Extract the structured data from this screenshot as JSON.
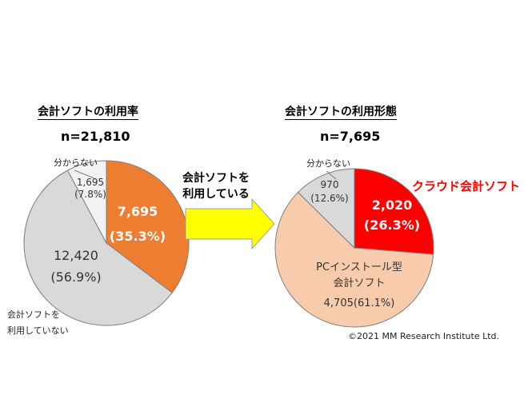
{
  "chart_data": [
    {
      "type": "pie",
      "title": "会計ソフトの利用率",
      "subtitle": "n=21,810",
      "slices": [
        {
          "label": "",
          "value_text": "7,695",
          "percent_text": "(35.3%)",
          "value": 7695,
          "percent": 35.3,
          "color": "#ed7d31"
        },
        {
          "label": "会計ソフトを利用していない",
          "value_text": "12,420",
          "percent_text": "(56.9%)",
          "value": 12420,
          "percent": 56.9,
          "color": "#d9d9d9"
        },
        {
          "label": "分からない",
          "value_text": "1,695",
          "percent_text": "(7.8%)",
          "value": 1695,
          "percent": 7.8,
          "color": "#f2f2f2"
        }
      ]
    },
    {
      "type": "pie",
      "title": "会計ソフトの利用形態",
      "subtitle": "n=7,695",
      "slices": [
        {
          "label": "クラウド会計ソフト",
          "value_text": "2,020",
          "percent_text": "(26.3%)",
          "value": 2020,
          "percent": 26.3,
          "color": "#ff0000"
        },
        {
          "label": "PCインストール型会計ソフト",
          "value_text": "4,705(61.1%)",
          "percent_text": "",
          "value": 4705,
          "percent": 61.1,
          "color": "#f8cbad"
        },
        {
          "label": "分からない",
          "value_text": "970",
          "percent_text": "(12.6%)",
          "value": 970,
          "percent": 12.6,
          "color": "#d9d9d9"
        }
      ]
    }
  ],
  "arrow": {
    "line1": "会計ソフトを",
    "line2": "利用している",
    "color": "#ffff00"
  },
  "left_labels": {
    "unknown": "分からない",
    "not_using_line1": "会計ソフトを",
    "not_using_line2": "利用していない"
  },
  "right_labels": {
    "unknown": "分からない",
    "cloud": "クラウド会計ソフト",
    "pc_line1": "PCインストール型",
    "pc_line2": "会計ソフト"
  },
  "copyright": "©2021 MM Research Institute Ltd."
}
